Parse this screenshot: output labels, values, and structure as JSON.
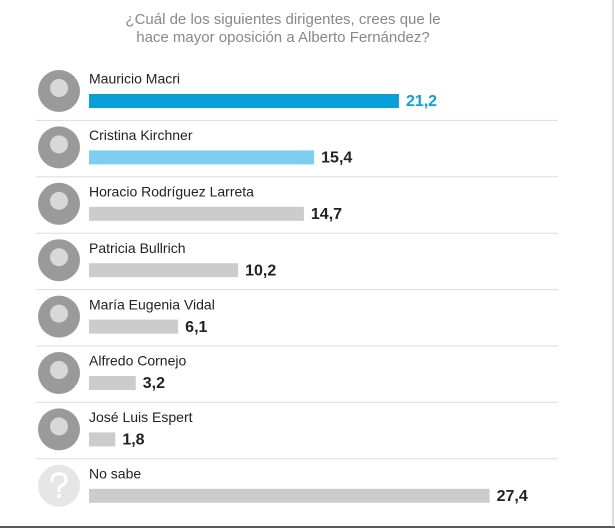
{
  "chart_data": {
    "type": "bar",
    "orientation": "horizontal",
    "title": [
      "¿Cuál de los siguientes dirigentes, crees que le",
      "hace mayor oposición a Alberto Fernández?"
    ],
    "categories": [
      "Mauricio Macri",
      "Cristina Kirchner",
      "Horacio Rodríguez Larreta",
      "Patricia Bullrich",
      "María Eugenia Vidal",
      "Alfredo Cornejo",
      "José Luis Espert",
      "No sabe"
    ],
    "values": [
      21.2,
      15.4,
      14.7,
      10.2,
      6.1,
      3.2,
      1.8,
      27.4
    ],
    "value_labels": [
      "21,2",
      "15,4",
      "14,7",
      "10,2",
      "6,1",
      "3,2",
      "1,8",
      "27,4"
    ],
    "colors": [
      "#0a9fd8",
      "#7dcef0",
      "#cccccc",
      "#cccccc",
      "#cccccc",
      "#cccccc",
      "#cccccc",
      "#cccccc"
    ],
    "label_colors": [
      "#0a9fd8",
      "#222222",
      "#222222",
      "#222222",
      "#222222",
      "#222222",
      "#222222",
      "#222222"
    ]
  }
}
